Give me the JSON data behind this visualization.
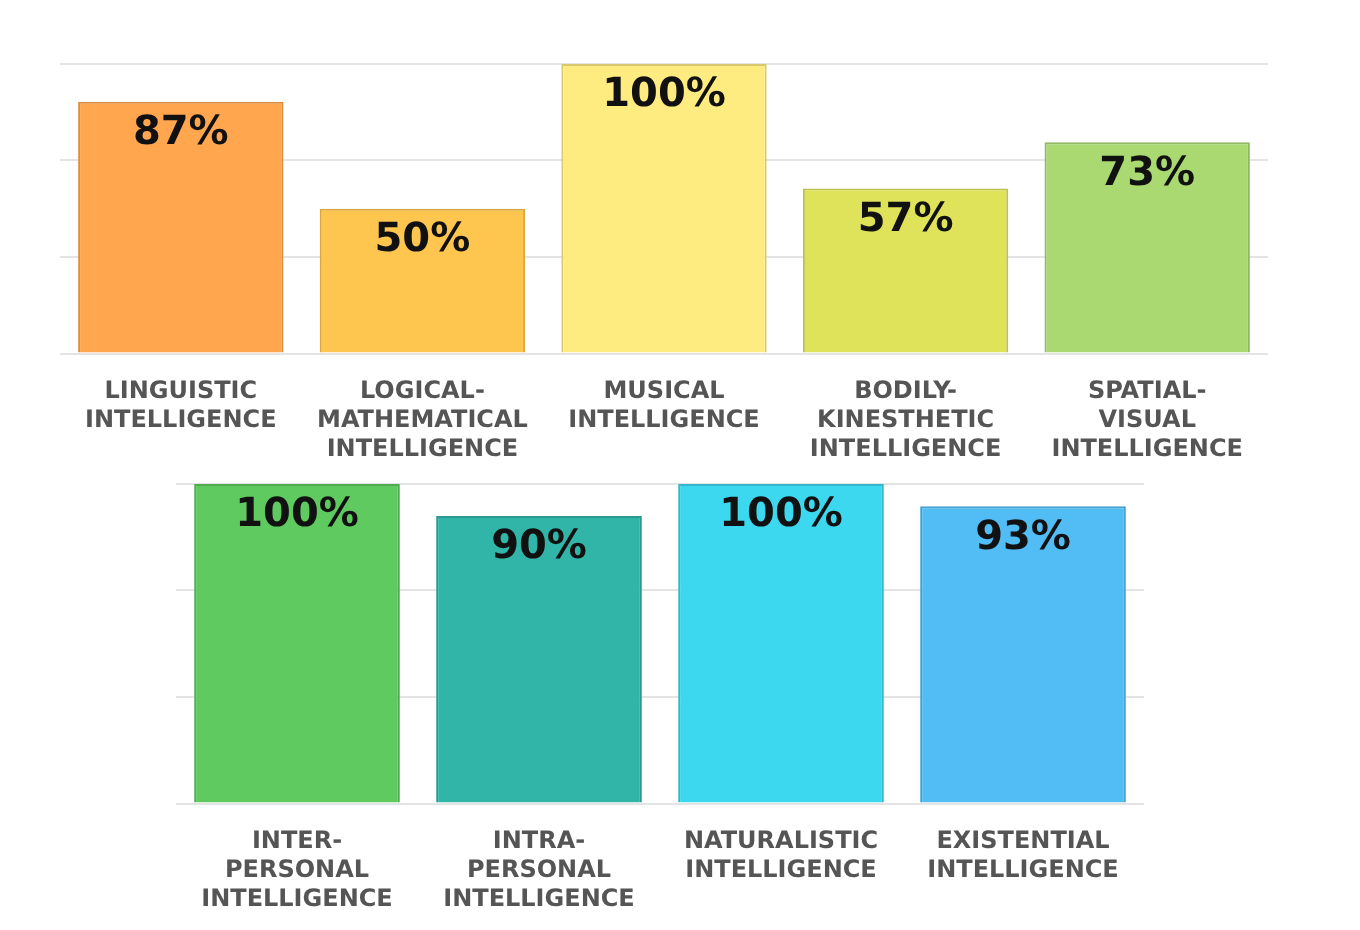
{
  "chart_data": [
    {
      "type": "bar",
      "categories": [
        "LINGUISTIC INTELLIGENCE",
        "LOGICAL-MATHEMATICAL INTELLIGENCE",
        "MUSICAL INTELLIGENCE",
        "BODILY-KINESTHETIC INTELLIGENCE",
        "SPATIAL-VISUAL INTELLIGENCE"
      ],
      "values": [
        87,
        50,
        100,
        57,
        73
      ],
      "value_labels": [
        "87%",
        "50%",
        "100%",
        "57%",
        "73%"
      ],
      "colors": [
        "#ffa64f",
        "#ffc64f",
        "#ffec80",
        "#dfe35a",
        "#a9d970"
      ],
      "ylim": [
        0,
        100
      ],
      "yticks": [
        {
          "value": 0,
          "label": null
        },
        {
          "value": 33.3,
          "label": null
        },
        {
          "value": 66.7,
          "label": null
        },
        {
          "value": 100,
          "label": null
        }
      ],
      "grid": "y",
      "legend": false,
      "tick_labels": "x"
    },
    {
      "type": "bar",
      "categories": [
        "INTER-PERSONAL INTELLIGENCE",
        "INTRA-PERSONAL INTELLIGENCE",
        "NATURALISTIC INTELLIGENCE",
        "EXISTENTIAL INTELLIGENCE"
      ],
      "values": [
        100,
        90,
        100,
        93
      ],
      "value_labels": [
        "100%",
        "90%",
        "100%",
        "93%"
      ],
      "colors": [
        "#5fca5f",
        "#30b5a8",
        "#3cd8ef",
        "#52bcf5"
      ],
      "ylim": [
        0,
        100
      ],
      "yticks": [
        {
          "value": 0,
          "label": null
        },
        {
          "value": 33.3,
          "label": null
        },
        {
          "value": 66.7,
          "label": null
        },
        {
          "value": 100,
          "label": null
        }
      ],
      "grid": "y",
      "legend": false,
      "tick_labels": "x"
    }
  ]
}
